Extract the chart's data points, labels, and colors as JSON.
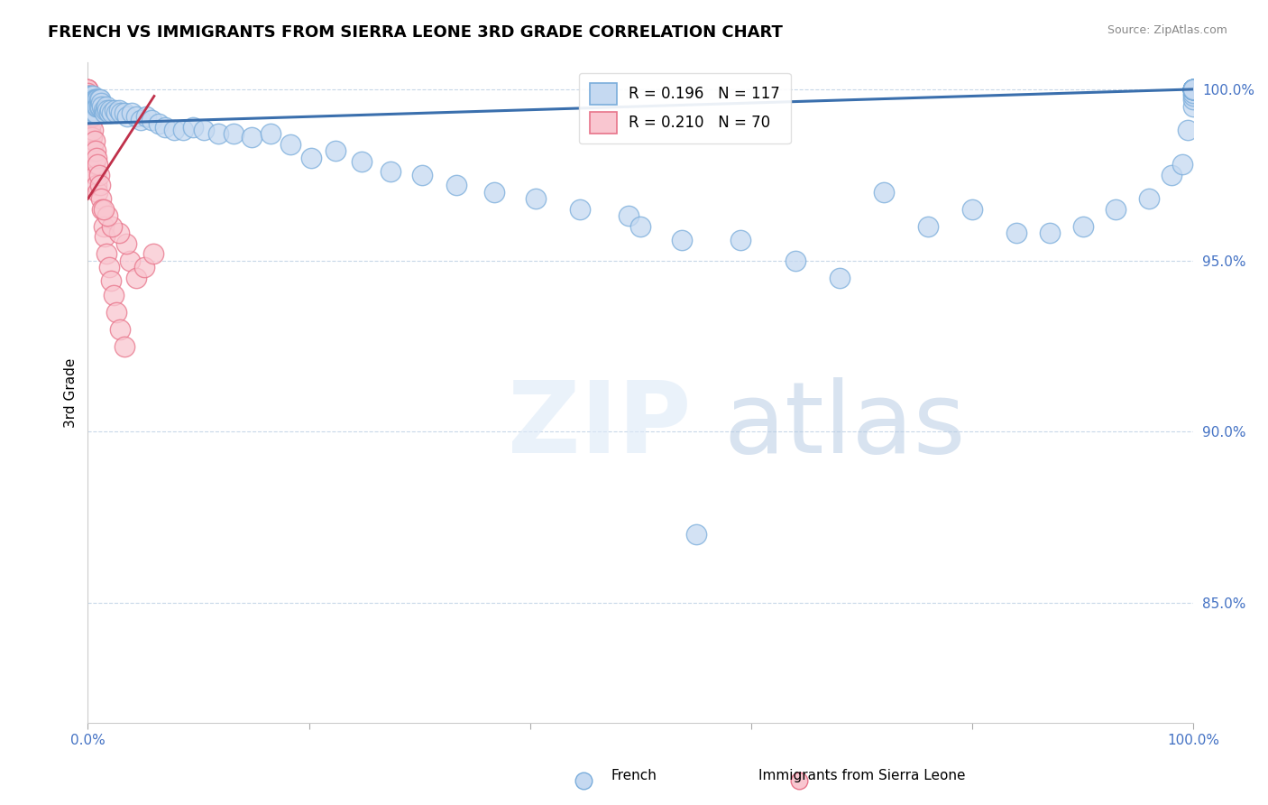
{
  "title": "FRENCH VS IMMIGRANTS FROM SIERRA LEONE 3RD GRADE CORRELATION CHART",
  "source": "Source: ZipAtlas.com",
  "ylabel": "3rd Grade",
  "y_lim": [
    0.815,
    1.008
  ],
  "y_ticks": [
    0.85,
    0.9,
    0.95,
    1.0
  ],
  "y_tick_labels": [
    "85.0%",
    "90.0%",
    "95.0%",
    "100.0%"
  ],
  "blue_R": 0.196,
  "blue_N": 117,
  "pink_R": 0.21,
  "pink_N": 70,
  "blue_color": "#c5d9f1",
  "blue_edge": "#7aaddb",
  "pink_color": "#f9c6d0",
  "pink_edge": "#e8748a",
  "blue_line_color": "#3a6fad",
  "pink_line_color": "#c0304a",
  "background_color": "#ffffff",
  "grid_color": "#c8d8e8",
  "blue_x": [
    0.0,
    0.001,
    0.001,
    0.001,
    0.002,
    0.002,
    0.002,
    0.003,
    0.003,
    0.003,
    0.004,
    0.004,
    0.004,
    0.005,
    0.005,
    0.005,
    0.006,
    0.006,
    0.006,
    0.007,
    0.007,
    0.007,
    0.008,
    0.008,
    0.009,
    0.009,
    0.01,
    0.01,
    0.011,
    0.011,
    0.012,
    0.013,
    0.014,
    0.015,
    0.016,
    0.017,
    0.018,
    0.019,
    0.02,
    0.022,
    0.024,
    0.026,
    0.028,
    0.03,
    0.033,
    0.036,
    0.04,
    0.044,
    0.048,
    0.053,
    0.058,
    0.064,
    0.07,
    0.078,
    0.086,
    0.095,
    0.105,
    0.118,
    0.132,
    0.148,
    0.165,
    0.183,
    0.202,
    0.224,
    0.248,
    0.274,
    0.302,
    0.333,
    0.368,
    0.405,
    0.445,
    0.489,
    0.5,
    0.537,
    0.55,
    0.59,
    0.64,
    0.68,
    0.72,
    0.76,
    0.8,
    0.84,
    0.87,
    0.9,
    0.93,
    0.96,
    0.98,
    0.99,
    0.995,
    1.0,
    1.0,
    1.0,
    1.0,
    1.0,
    1.0,
    1.0,
    1.0,
    1.0,
    1.0,
    1.0,
    1.0,
    1.0,
    1.0,
    1.0,
    1.0,
    1.0,
    1.0,
    1.0,
    1.0,
    1.0,
    1.0,
    1.0,
    1.0,
    1.0,
    1.0,
    1.0,
    1.0
  ],
  "blue_y": [
    0.998,
    0.997,
    0.995,
    0.993,
    0.998,
    0.996,
    0.994,
    0.998,
    0.996,
    0.994,
    0.997,
    0.995,
    0.993,
    0.998,
    0.996,
    0.994,
    0.997,
    0.995,
    0.993,
    0.997,
    0.995,
    0.993,
    0.997,
    0.995,
    0.997,
    0.995,
    0.997,
    0.995,
    0.997,
    0.995,
    0.996,
    0.995,
    0.994,
    0.993,
    0.994,
    0.995,
    0.994,
    0.993,
    0.994,
    0.993,
    0.994,
    0.993,
    0.994,
    0.993,
    0.993,
    0.992,
    0.993,
    0.992,
    0.991,
    0.992,
    0.991,
    0.99,
    0.989,
    0.988,
    0.988,
    0.989,
    0.988,
    0.987,
    0.987,
    0.986,
    0.987,
    0.984,
    0.98,
    0.982,
    0.979,
    0.976,
    0.975,
    0.972,
    0.97,
    0.968,
    0.965,
    0.963,
    0.96,
    0.956,
    0.87,
    0.956,
    0.95,
    0.945,
    0.97,
    0.96,
    0.965,
    0.958,
    0.958,
    0.96,
    0.965,
    0.968,
    0.975,
    0.978,
    0.988,
    0.995,
    0.997,
    0.998,
    0.999,
    1.0,
    1.0,
    1.0,
    1.0,
    1.0,
    1.0,
    1.0,
    1.0,
    1.0,
    1.0,
    1.0,
    1.0,
    1.0,
    1.0,
    1.0,
    1.0,
    1.0,
    1.0,
    1.0,
    1.0,
    1.0,
    1.0,
    1.0,
    1.0
  ],
  "pink_x": [
    0.0,
    0.0,
    0.0,
    0.0,
    0.0,
    0.0,
    0.0,
    0.0,
    0.0,
    0.0,
    0.0,
    0.0,
    0.0,
    0.0,
    0.0,
    0.0,
    0.001,
    0.001,
    0.001,
    0.001,
    0.001,
    0.001,
    0.001,
    0.001,
    0.001,
    0.002,
    0.002,
    0.002,
    0.002,
    0.002,
    0.003,
    0.003,
    0.003,
    0.003,
    0.004,
    0.004,
    0.004,
    0.005,
    0.005,
    0.005,
    0.006,
    0.006,
    0.007,
    0.007,
    0.008,
    0.008,
    0.009,
    0.009,
    0.01,
    0.011,
    0.012,
    0.013,
    0.014,
    0.015,
    0.017,
    0.019,
    0.021,
    0.023,
    0.026,
    0.029,
    0.033,
    0.038,
    0.044,
    0.051,
    0.059,
    0.035,
    0.028,
    0.022,
    0.018,
    0.014
  ],
  "pink_y": [
    1.0,
    1.0,
    1.0,
    0.999,
    0.998,
    0.997,
    0.996,
    0.995,
    0.994,
    0.993,
    0.992,
    0.99,
    0.988,
    0.986,
    0.984,
    0.982,
    0.998,
    0.996,
    0.994,
    0.992,
    0.99,
    0.988,
    0.986,
    0.984,
    0.982,
    0.996,
    0.994,
    0.992,
    0.988,
    0.984,
    0.994,
    0.99,
    0.986,
    0.982,
    0.992,
    0.986,
    0.98,
    0.988,
    0.982,
    0.976,
    0.985,
    0.978,
    0.982,
    0.975,
    0.98,
    0.972,
    0.978,
    0.97,
    0.975,
    0.972,
    0.968,
    0.965,
    0.96,
    0.957,
    0.952,
    0.948,
    0.944,
    0.94,
    0.935,
    0.93,
    0.925,
    0.95,
    0.945,
    0.948,
    0.952,
    0.955,
    0.958,
    0.96,
    0.963,
    0.965
  ]
}
